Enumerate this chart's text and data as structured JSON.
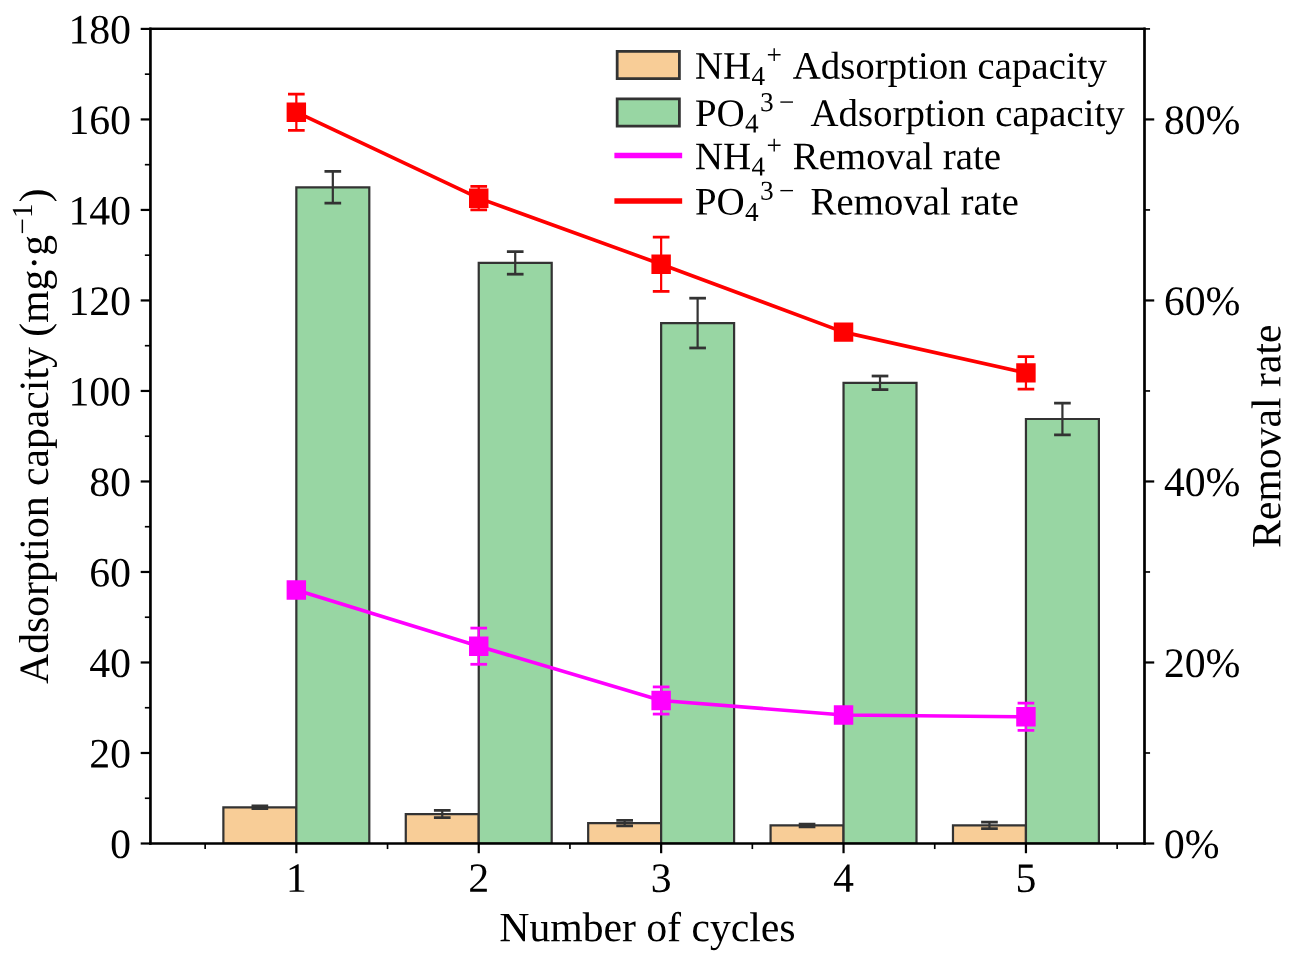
{
  "chart_data": {
    "type": "bar",
    "xlabel": "Number of cycles",
    "ylabel": "Adsorption capacity (mg·g$^{−1}$)",
    "y2label": "Removal rate",
    "categories": [
      "1",
      "2",
      "3",
      "4",
      "5"
    ],
    "series": [
      {
        "name": "NH$_{4}$$^{+}$ Adsorption capacity",
        "color": "#f8cd97",
        "values": [
          8,
          6.5,
          4.5,
          4,
          4
        ],
        "errors": [
          0.3,
          0.8,
          0.6,
          0.3,
          0.7
        ]
      },
      {
        "name": "PO$_{4}$$^{3−}$ Adsorption capacity",
        "color": "#98d6a3",
        "values": [
          145,
          128.3,
          115,
          101.8,
          93.8
        ],
        "errors": [
          3.5,
          2.5,
          5.5,
          1.5,
          3.5
        ]
      },
      {
        "name": "NH$_{4}$$^{+}$ Removal rate",
        "type": "line",
        "axis": "y2",
        "color": "#ff00ff",
        "values": [
          28,
          21.8,
          15.8,
          14.2,
          14
        ],
        "errors": [
          0.4,
          2,
          1.5,
          0.5,
          1.5
        ]
      },
      {
        "name": "PO$_{4}$$^{3−}$ Removal rate",
        "type": "line",
        "axis": "y2",
        "color": "#ff0000",
        "values": [
          80.8,
          71.3,
          64,
          56.5,
          52
        ],
        "errors": [
          2,
          1.3,
          3,
          0.5,
          1.8
        ]
      }
    ],
    "ylim": [
      0,
      180
    ],
    "yticks": [
      0,
      20,
      40,
      60,
      80,
      100,
      120,
      140,
      160,
      180
    ],
    "y2lim": [
      0,
      90
    ],
    "y2ticks": [
      {
        "value": 0,
        "label": "0%"
      },
      {
        "value": 20,
        "label": "20%"
      },
      {
        "value": 40,
        "label": "40%"
      },
      {
        "value": 60,
        "label": "60%"
      },
      {
        "value": 80,
        "label": "80%"
      }
    ],
    "marker": "square",
    "legend": "top right",
    "grid": false
  }
}
